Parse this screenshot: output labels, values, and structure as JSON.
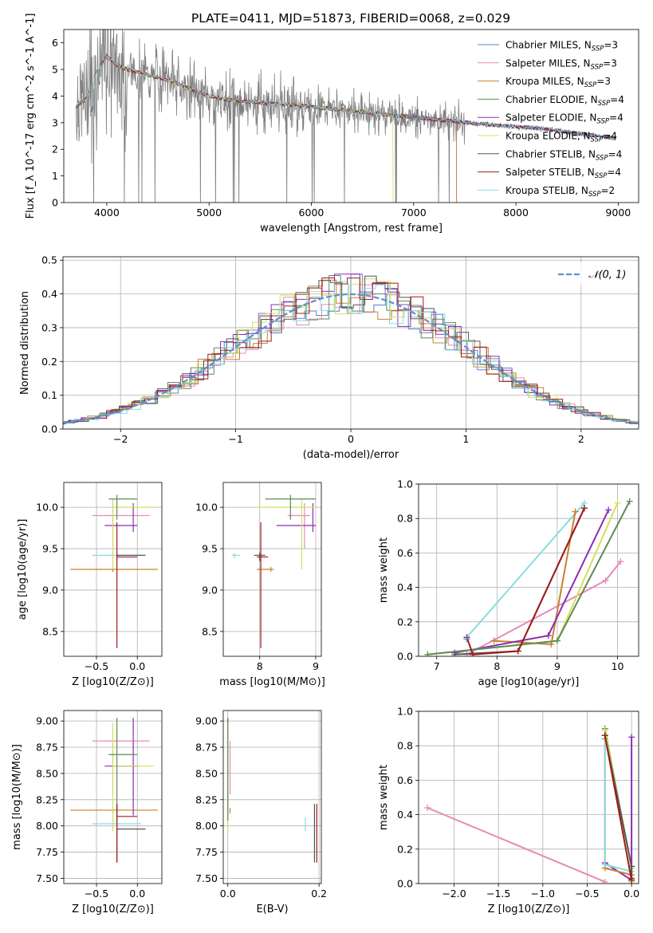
{
  "figure_title": "PLATE=0411, MJD=51873, FIBERID=0068, z=0.029",
  "colors": {
    "Chabrier MILES": "#5b7fd6",
    "Salpeter MILES": "#e58bb8",
    "Kroupa MILES": "#c9802b",
    "Chabrier ELODIE": "#5e8a55",
    "Salpeter ELODIE": "#8f2bb3",
    "Kroupa ELODIE": "#d4e05a",
    "Chabrier STELIB": "#555555",
    "Salpeter STELIB": "#a11b1b",
    "Kroupa STELIB": "#86dde0",
    "data": "#808080",
    "normal": "#5b8fd6"
  },
  "chart_data": [
    {
      "id": "spectrum",
      "type": "line",
      "xlabel": "wavelength [Angstrom, rest frame]",
      "ylabel": "Flux [f_λ 10^-17 erg cm^-2 s^-1 A^-1]",
      "xlim": [
        3580,
        9200
      ],
      "ylim": [
        0,
        6.5
      ],
      "xticks": [
        4000,
        5000,
        6000,
        7000,
        8000,
        9000
      ],
      "yticks": [
        0,
        1,
        2,
        3,
        4,
        5,
        6
      ],
      "grid": false,
      "legend": "top-right",
      "legend_entries": [
        {
          "name": "Chabrier MILES",
          "nssp": "3"
        },
        {
          "name": "Salpeter MILES",
          "nssp": "3"
        },
        {
          "name": "Kroupa MILES",
          "nssp": "3"
        },
        {
          "name": "Chabrier ELODIE",
          "nssp": "4"
        },
        {
          "name": "Salpeter ELODIE",
          "nssp": "4"
        },
        {
          "name": "Kroupa ELODIE",
          "nssp": "4"
        },
        {
          "name": "Chabrier STELIB",
          "nssp": "4"
        },
        {
          "name": "Salpeter STELIB",
          "nssp": "4"
        },
        {
          "name": "Kroupa STELIB",
          "nssp": "2"
        }
      ],
      "continuum": {
        "x": [
          3700,
          3800,
          3900,
          4000,
          4100,
          4200,
          4400,
          4600,
          4800,
          5000,
          5200,
          5500,
          6000,
          6500,
          7000,
          7400,
          7800,
          8200,
          8600,
          9000
        ],
        "y": [
          3.6,
          3.9,
          4.9,
          5.5,
          5.15,
          5.0,
          4.8,
          4.6,
          4.3,
          4.0,
          3.85,
          3.75,
          3.6,
          3.4,
          3.2,
          3.05,
          2.9,
          2.8,
          2.6,
          2.4
        ]
      }
    },
    {
      "id": "residuals",
      "type": "line",
      "xlabel": "(data-model)/error",
      "ylabel": "Normed distribution",
      "xlim": [
        -2.5,
        2.5
      ],
      "ylim": [
        0,
        0.51
      ],
      "xticks": [
        -2,
        -1,
        0,
        1,
        2
      ],
      "yticks": [
        0.0,
        0.1,
        0.2,
        0.3,
        0.4,
        0.5
      ],
      "grid": true,
      "legend": "top-right",
      "legend_label": "𝒩(0, 1)",
      "peak_values": [
        0.49,
        0.46,
        0.42,
        0.4
      ]
    },
    {
      "id": "age-vs-Z",
      "type": "scatter",
      "xlabel": "Z [log10(Z/Z⊙)]",
      "ylabel": "age  [log10(age/yr)]",
      "xlim": [
        -0.9,
        0.3
      ],
      "ylim": [
        8.2,
        10.3
      ],
      "xticks": [
        -0.5,
        0.0
      ],
      "yticks": [
        8.5,
        9.0,
        9.5,
        10.0
      ],
      "grid": true
    },
    {
      "id": "age-vs-mass",
      "type": "scatter",
      "xlabel": "mass [log10(M/M⊙)]",
      "xlim": [
        7.35,
        9.1
      ],
      "ylim": [
        8.2,
        10.3
      ],
      "xticks": [
        8,
        9
      ],
      "yticks": [
        8.5,
        9.0,
        9.5,
        10.0
      ],
      "grid": true
    },
    {
      "id": "massweight-vs-age",
      "type": "line",
      "xlabel": "age  [log10(age/yr)]",
      "ylabel": "mass weight",
      "xlim": [
        6.7,
        10.35
      ],
      "ylim": [
        0,
        1
      ],
      "xticks": [
        7,
        8,
        9,
        10
      ],
      "yticks": [
        0.0,
        0.2,
        0.4,
        0.6,
        0.8,
        1.0
      ],
      "grid": true,
      "series": [
        {
          "model": "Kroupa STELIB",
          "x": [
            7.5,
            9.45
          ],
          "y": [
            0.11,
            0.89
          ]
        },
        {
          "model": "Salpeter MILES",
          "x": [
            7.5,
            9.8,
            10.05
          ],
          "y": [
            0.01,
            0.44,
            0.55
          ]
        },
        {
          "model": "Kroupa MILES",
          "x": [
            7.95,
            8.9,
            9.3
          ],
          "y": [
            0.09,
            0.07,
            0.84
          ]
        },
        {
          "model": "Salpeter ELODIE",
          "x": [
            7.3,
            8.85,
            9.85
          ],
          "y": [
            0.02,
            0.12,
            0.85
          ]
        },
        {
          "model": "Kroupa ELODIE",
          "x": [
            6.85,
            9.0,
            10.0
          ],
          "y": [
            0.01,
            0.09,
            0.89
          ]
        },
        {
          "model": "Chabrier ELODIE",
          "x": [
            6.85,
            9.0,
            10.2
          ],
          "y": [
            0.01,
            0.09,
            0.9
          ]
        },
        {
          "model": "Chabrier STELIB",
          "x": [
            7.3,
            8.35,
            9.45
          ],
          "y": [
            0.01,
            0.03,
            0.86
          ]
        },
        {
          "model": "Salpeter STELIB",
          "x": [
            7.5,
            7.6,
            8.35,
            9.45
          ],
          "y": [
            0.11,
            0.01,
            0.03,
            0.86
          ]
        },
        {
          "model": "Chabrier MILES",
          "x": [
            7.5
          ],
          "y": [
            0.1
          ]
        }
      ]
    },
    {
      "id": "mass-vs-Z",
      "type": "scatter",
      "xlabel": "Z [log10(Z/Z⊙)]",
      "ylabel": "mass [log10(M/M⊙)]",
      "xlim": [
        -0.9,
        0.3
      ],
      "ylim": [
        7.45,
        9.1
      ],
      "xticks": [
        -0.5,
        0.0
      ],
      "yticks": [
        7.5,
        7.75,
        8.0,
        8.25,
        8.5,
        8.75,
        9.0
      ],
      "grid": true
    },
    {
      "id": "mass-vs-ebv",
      "type": "scatter",
      "xlabel": "E(B-V)",
      "xlim": [
        -0.01,
        0.205
      ],
      "ylim": [
        7.45,
        9.1
      ],
      "xticks": [
        0.0,
        0.2
      ],
      "yticks": [
        7.5,
        7.75,
        8.0,
        8.25,
        8.5,
        8.75,
        9.0
      ],
      "grid": true
    },
    {
      "id": "massweight-vs-Z",
      "type": "line",
      "xlabel": "Z [log10(Z/Z⊙)]",
      "ylabel": "mass weight",
      "xlim": [
        -2.4,
        0.08
      ],
      "ylim": [
        0,
        1
      ],
      "xticks": [
        -2.0,
        -1.5,
        -1.0,
        -0.5,
        0.0
      ],
      "yticks": [
        0.0,
        0.2,
        0.4,
        0.6,
        0.8,
        1.0
      ],
      "grid": true,
      "series": [
        {
          "model": "Salpeter MILES",
          "x": [
            -2.3,
            -0.3
          ],
          "y": [
            0.44,
            0.01
          ]
        },
        {
          "model": "Salpeter ELODIE",
          "x": [
            -0.3,
            0.0,
            0.0
          ],
          "y": [
            0.12,
            0.02,
            0.85
          ]
        },
        {
          "model": "Kroupa MILES",
          "x": [
            -0.3,
            -0.3,
            0.0
          ],
          "y": [
            0.84,
            0.09,
            0.05
          ]
        },
        {
          "model": "Kroupa STELIB",
          "x": [
            -0.3,
            -0.3,
            0.0
          ],
          "y": [
            0.89,
            0.11,
            0.07
          ]
        },
        {
          "model": "Chabrier ELODIE",
          "x": [
            -0.3,
            0.0,
            0.0
          ],
          "y": [
            0.9,
            0.09,
            0.01
          ]
        },
        {
          "model": "Kroupa ELODIE",
          "x": [
            -0.3,
            0.0,
            0.0
          ],
          "y": [
            0.89,
            0.09,
            0.01
          ]
        },
        {
          "model": "Chabrier STELIB",
          "x": [
            -0.3,
            0.0,
            0.0
          ],
          "y": [
            0.86,
            0.1,
            0.03
          ]
        },
        {
          "model": "Salpeter STELIB",
          "x": [
            -0.3,
            0.0,
            0.0
          ],
          "y": [
            0.86,
            0.02,
            0.03
          ]
        }
      ]
    }
  ]
}
